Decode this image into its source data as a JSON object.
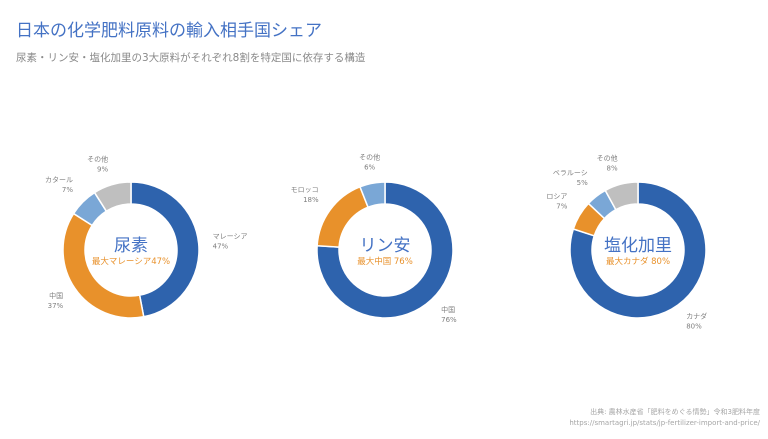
{
  "title": "日本の化学肥料原料の輸入相手国シェア",
  "subtitle": "尿素・リン安・塩化加里の3大原料がそれぞれ8割を特定国に依存する構造",
  "colors": {
    "primary": "#2e63ad",
    "secondary": "#e8912b",
    "tertiary": "#7aa7d6",
    "other": "#bfbfbf",
    "label": "#7f7f7f",
    "center_title": "#4472c4",
    "center_sub": "#e8912b"
  },
  "chart_data": [
    {
      "type": "pie",
      "center_title": "尿素",
      "center_sub": "最大マレーシア47%",
      "slices": [
        {
          "label": "マレーシア",
          "value": 47,
          "value_label": "47%",
          "color": "#2e63ad"
        },
        {
          "label": "中国",
          "value": 37,
          "value_label": "37%",
          "color": "#e8912b"
        },
        {
          "label": "カタール",
          "value": 7,
          "value_label": "7%",
          "color": "#7aa7d6"
        },
        {
          "label": "その他",
          "value": 9,
          "value_label": "9%",
          "color": "#bfbfbf"
        }
      ]
    },
    {
      "type": "pie",
      "center_title": "リン安",
      "center_sub": "最大中国 76%",
      "slices": [
        {
          "label": "中国",
          "value": 76,
          "value_label": "76%",
          "color": "#2e63ad"
        },
        {
          "label": "モロッコ",
          "value": 18,
          "value_label": "18%",
          "color": "#e8912b"
        },
        {
          "label": "その他",
          "value": 6,
          "value_label": "6%",
          "color": "#7aa7d6"
        }
      ]
    },
    {
      "type": "pie",
      "center_title": "塩化加里",
      "center_sub": "最大カナダ 80%",
      "slices": [
        {
          "label": "カナダ",
          "value": 80,
          "value_label": "80%",
          "color": "#2e63ad"
        },
        {
          "label": "ロシア",
          "value": 7,
          "value_label": "7%",
          "color": "#e8912b"
        },
        {
          "label": "ベラルーシ",
          "value": 5,
          "value_label": "5%",
          "color": "#7aa7d6"
        },
        {
          "label": "その他",
          "value": 8,
          "value_label": "8%",
          "color": "#bfbfbf"
        }
      ]
    }
  ],
  "source_line": "出典: 農林水産省「肥料をめぐる情勢」令和3肥料年度",
  "source_url": "https://smartagri.jp/stats/jp-fertilizer-import-and-price/"
}
